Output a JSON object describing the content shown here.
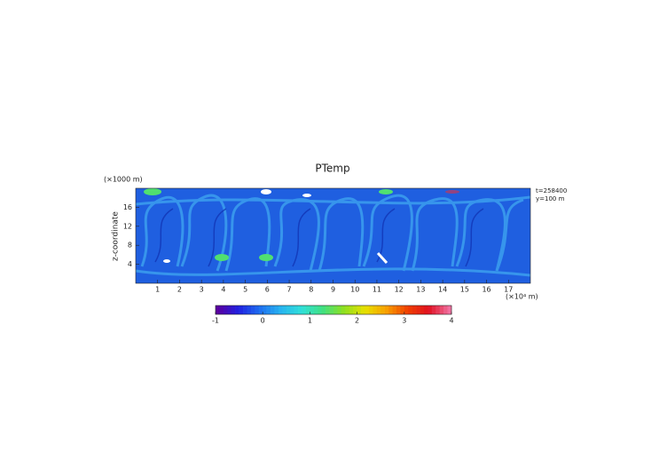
{
  "chart_data": {
    "type": "heatmap",
    "title": "PTemp",
    "xlabel": "(×10⁴ m)",
    "ylabel": "z-coordinate",
    "yunit": "(×1000 m)",
    "annotations": [
      "t=258400",
      "y=100 m"
    ],
    "xlim": [
      0,
      18
    ],
    "xticks": [
      1,
      2,
      3,
      4,
      5,
      6,
      7,
      8,
      9,
      10,
      11,
      12,
      13,
      14,
      15,
      16,
      17
    ],
    "ylim": [
      0,
      20
    ],
    "yticks": [
      4,
      8,
      12,
      16
    ],
    "colorbar": {
      "lim": [
        -1,
        4
      ],
      "ticks": [
        -1,
        0,
        1,
        2,
        3,
        4
      ],
      "colors": [
        "#5a00a0",
        "#2020e0",
        "#1e6ef0",
        "#28b4f0",
        "#30e0d8",
        "#40e080",
        "#90e020",
        "#e8e000",
        "#f8a000",
        "#f04000",
        "#e01020",
        "#f070a0"
      ]
    }
  }
}
